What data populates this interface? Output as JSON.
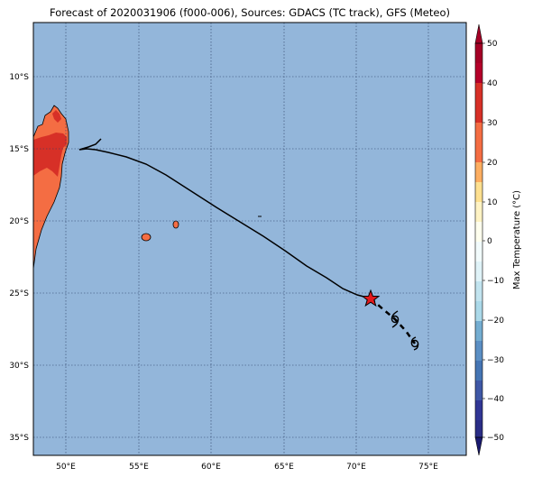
{
  "title": "Forecast of 2020031906 (f000-006), Sources: GDACS (TC track), GFS (Meteo)",
  "map": {
    "ocean_color": "#93b6da",
    "land_color": "#f46d43",
    "land_hot_color": "#d73027",
    "gridlines": "dotted",
    "lon_ticks": [
      "50°E",
      "55°E",
      "60°E",
      "65°E",
      "70°E",
      "75°E"
    ],
    "lat_ticks": [
      "10°S",
      "15°S",
      "20°S",
      "25°S",
      "30°S",
      "35°S"
    ]
  },
  "track": {
    "past_color": "#000000",
    "forecast_style": "dashed",
    "current_position_marker": "red-star",
    "forecast_marker": "cyclone-symbol"
  },
  "colorbar": {
    "label": "Max Temperature (°C)",
    "ticks": [
      "50",
      "40",
      "30",
      "20",
      "10",
      "0",
      "−10",
      "−20",
      "−30",
      "−40",
      "−50"
    ],
    "colors": [
      "#a50026",
      "#d73027",
      "#f46d43",
      "#fdae61",
      "#fee090",
      "#ffffbf",
      "#e0f3f8",
      "#abd9e9",
      "#74add1",
      "#4575b4",
      "#313695"
    ]
  }
}
